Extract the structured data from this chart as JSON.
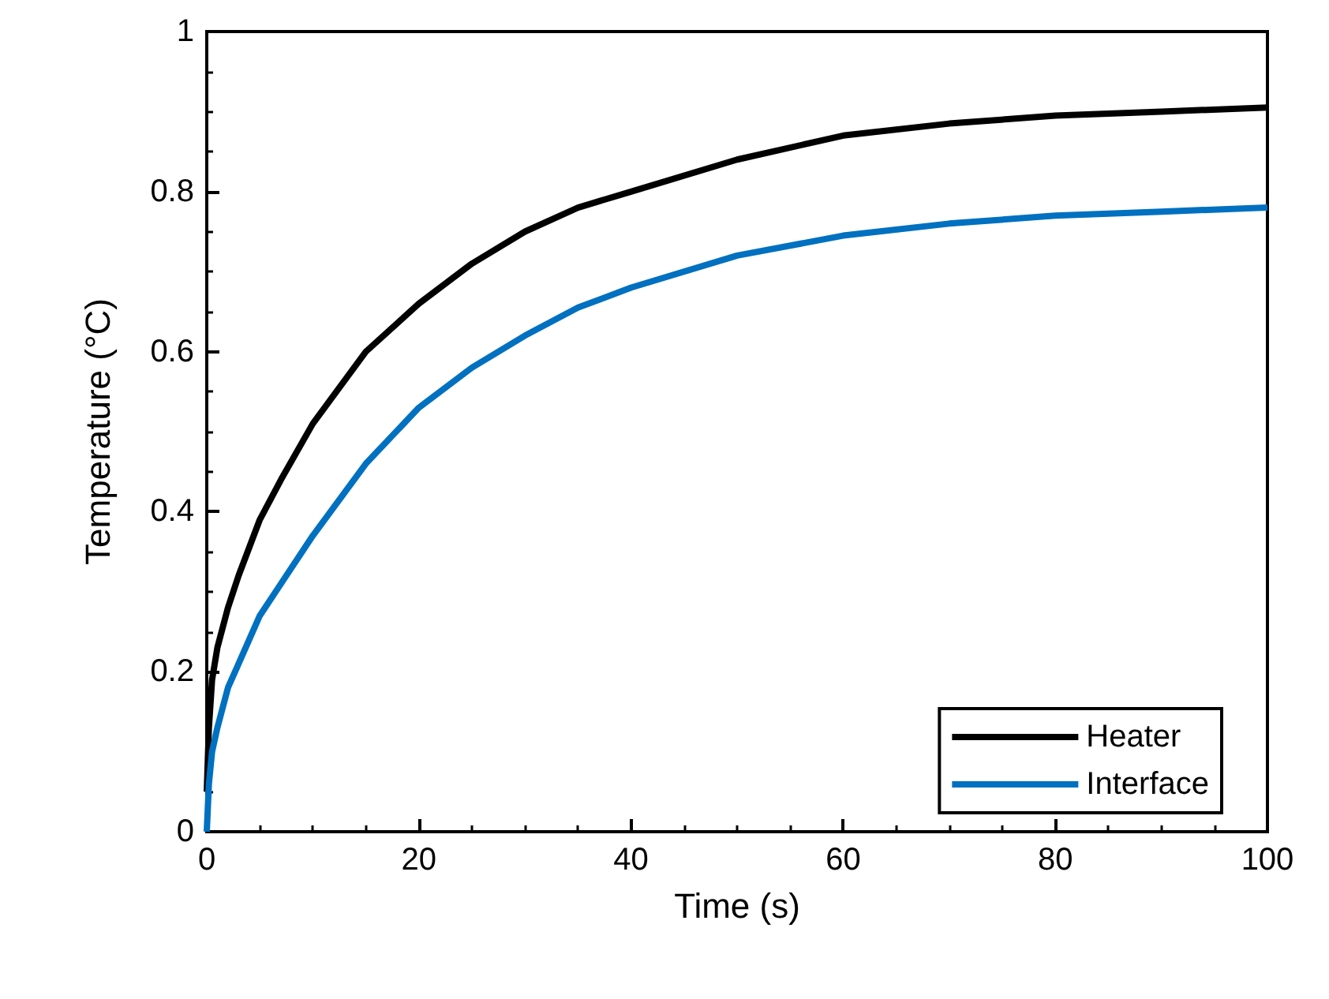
{
  "chart_data": {
    "type": "line",
    "xlabel": "Time (s)",
    "ylabel": "Temperature (°C)",
    "x": [
      0,
      0.2,
      0.5,
      1,
      2,
      3,
      5,
      7,
      10,
      15,
      20,
      25,
      30,
      35,
      40,
      50,
      60,
      70,
      80,
      90,
      100
    ],
    "series": [
      {
        "name": "Heater",
        "color": "#000000",
        "values": [
          0.05,
          0.13,
          0.19,
          0.23,
          0.28,
          0.32,
          0.39,
          0.44,
          0.51,
          0.6,
          0.66,
          0.71,
          0.75,
          0.78,
          0.8,
          0.84,
          0.87,
          0.885,
          0.895,
          0.9,
          0.905
        ]
      },
      {
        "name": "Interface",
        "color": "#0070c0",
        "values": [
          0,
          0.06,
          0.1,
          0.13,
          0.18,
          0.21,
          0.27,
          0.31,
          0.37,
          0.46,
          0.53,
          0.58,
          0.62,
          0.655,
          0.68,
          0.72,
          0.745,
          0.76,
          0.77,
          0.775,
          0.78
        ]
      }
    ],
    "xlim": [
      0,
      100
    ],
    "xticks": [
      0,
      20,
      40,
      60,
      80,
      100
    ],
    "ylim": [
      0,
      1
    ],
    "yticks": [
      0,
      0.2,
      0.4,
      0.6,
      0.8,
      1
    ],
    "grid": false,
    "legend": "bottom right",
    "marker": "none",
    "line_style": "solid"
  }
}
